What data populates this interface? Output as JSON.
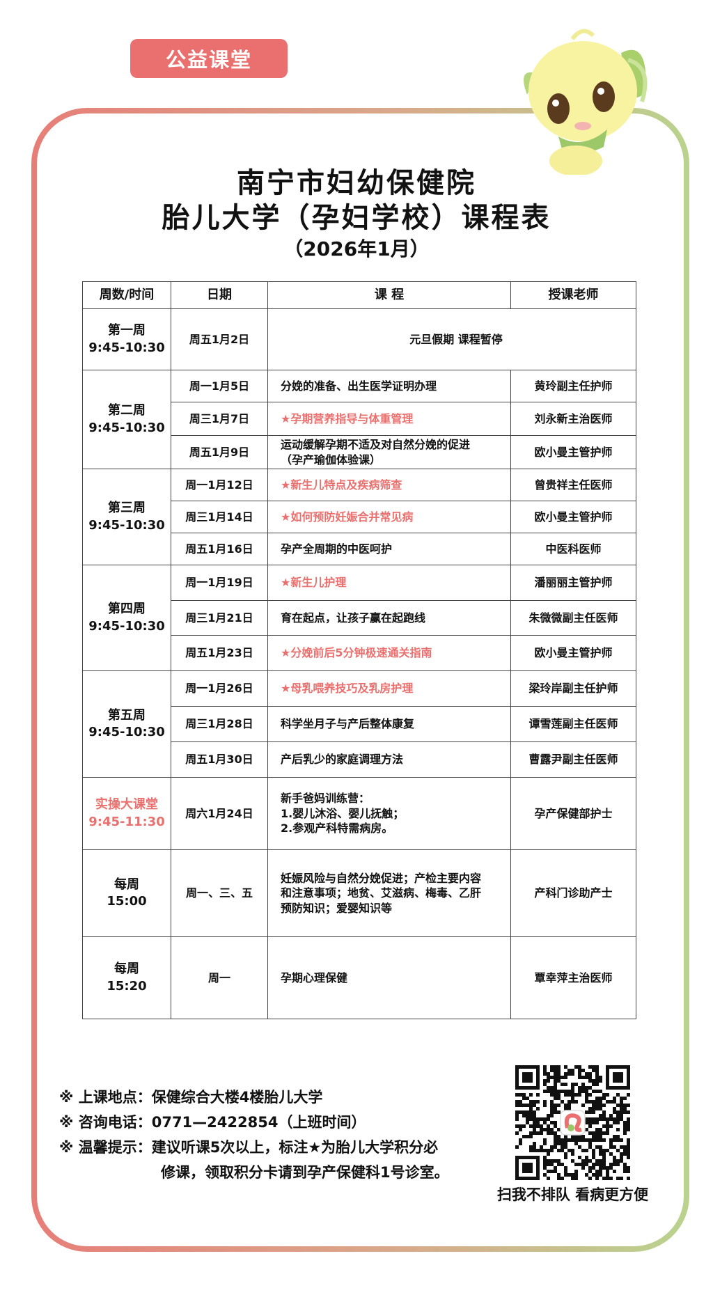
{
  "badge": "公益课堂",
  "title_line1": "南宁市妇幼保健院",
  "title_line2": "胎儿大学（孕妇学校）课程表",
  "subtitle": "（2026年1月）",
  "table": {
    "headers": [
      "周数/时间",
      "日期",
      "课  程",
      "授课老师"
    ],
    "groups": [
      {
        "label": "第一周",
        "time": "9:45-10:30",
        "highlight": false,
        "sessions": [
          {
            "date": "周五1月2日",
            "course": "元旦假期 课程暂停",
            "teacher": null,
            "star": false
          }
        ]
      },
      {
        "label": "第二周",
        "time": "9:45-10:30",
        "highlight": false,
        "sessions": [
          {
            "date": "周一1月5日",
            "course": "分娩的准备、出生医学证明办理",
            "teacher": "黄玲副主任护师",
            "star": false
          },
          {
            "date": "周三1月7日",
            "course": "★孕期营养指导与体重管理",
            "teacher": "刘永新主治医师",
            "star": true
          },
          {
            "date": "周五1月9日",
            "course": "运动缓解孕期不适及对自然分娩的促进\n（孕产瑜伽体验课）",
            "teacher": "欧小曼主管护师",
            "star": false
          }
        ]
      },
      {
        "label": "第三周",
        "time": "9:45-10:30",
        "highlight": false,
        "sessions": [
          {
            "date": "周一1月12日",
            "course": "★新生儿特点及疾病筛查",
            "teacher": "曾贵祥主任医师",
            "star": true
          },
          {
            "date": "周三1月14日",
            "course": "★如何预防妊娠合并常见病",
            "teacher": "欧小曼主管护师",
            "star": true
          },
          {
            "date": "周五1月16日",
            "course": "孕产全周期的中医呵护",
            "teacher": "中医科医师",
            "star": false
          }
        ]
      },
      {
        "label": "第四周",
        "time": "9:45-10:30",
        "highlight": false,
        "sessions": [
          {
            "date": "周一1月19日",
            "course": "★新生儿护理",
            "teacher": "潘丽丽主管护师",
            "star": true
          },
          {
            "date": "周三1月21日",
            "course": "育在起点，让孩子赢在起跑线",
            "teacher": "朱微微副主任医师",
            "star": false
          },
          {
            "date": "周五1月23日",
            "course": "★分娩前后5分钟极速通关指南",
            "teacher": "欧小曼主管护师",
            "star": true
          }
        ]
      },
      {
        "label": "第五周",
        "time": "9:45-10:30",
        "highlight": false,
        "sessions": [
          {
            "date": "周一1月26日",
            "course": "★母乳喂养技巧及乳房护理",
            "teacher": "梁玲岸副主任护师",
            "star": true
          },
          {
            "date": "周三1月28日",
            "course": "科学坐月子与产后整体康复",
            "teacher": "谭雪莲副主任医师",
            "star": false
          },
          {
            "date": "周五1月30日",
            "course": "产后乳少的家庭调理方法",
            "teacher": "曹露尹副主任医师",
            "star": false
          }
        ]
      },
      {
        "label": "实操大课堂",
        "time": "9:45-11:30",
        "highlight": true,
        "sessions": [
          {
            "date": "周六1月24日",
            "course": "新手爸妈训练营：\n1.婴儿沐浴、婴儿抚触；\n2.参观产科特需病房。",
            "teacher": "孕产保健部护士",
            "star": false
          }
        ]
      },
      {
        "label": "每周",
        "time": "15:00",
        "highlight": false,
        "sessions": [
          {
            "date": "周一、三、五",
            "course": "妊娠风险与自然分娩促进；产检主要内容\n和注意事项；地贫、艾滋病、梅毒、乙肝\n预防知识；爱婴知识等",
            "teacher": "产科门诊助产士",
            "star": false
          }
        ]
      },
      {
        "label": "每周",
        "time": "15:20",
        "highlight": false,
        "sessions": [
          {
            "date": "周一",
            "course": "孕期心理保健",
            "teacher": "覃幸萍主治医师",
            "star": false
          }
        ]
      }
    ]
  },
  "footer": {
    "location": "※ 上课地点：保健综合大楼4楼胎儿大学",
    "phone": "※ 咨询电话：0771—2422854（上班时间）",
    "tip_line1": "※ 温馨提示：建议听课5次以上，标注★为胎儿大学积分必",
    "tip_line2": "修课，领取积分卡请到孕产保健科1号诊室。"
  },
  "qr_caption": "扫我不排队 看病更方便",
  "colors": {
    "accent": "#e9706e",
    "frame_left": "#e67e78",
    "frame_right": "#b9d38e"
  }
}
